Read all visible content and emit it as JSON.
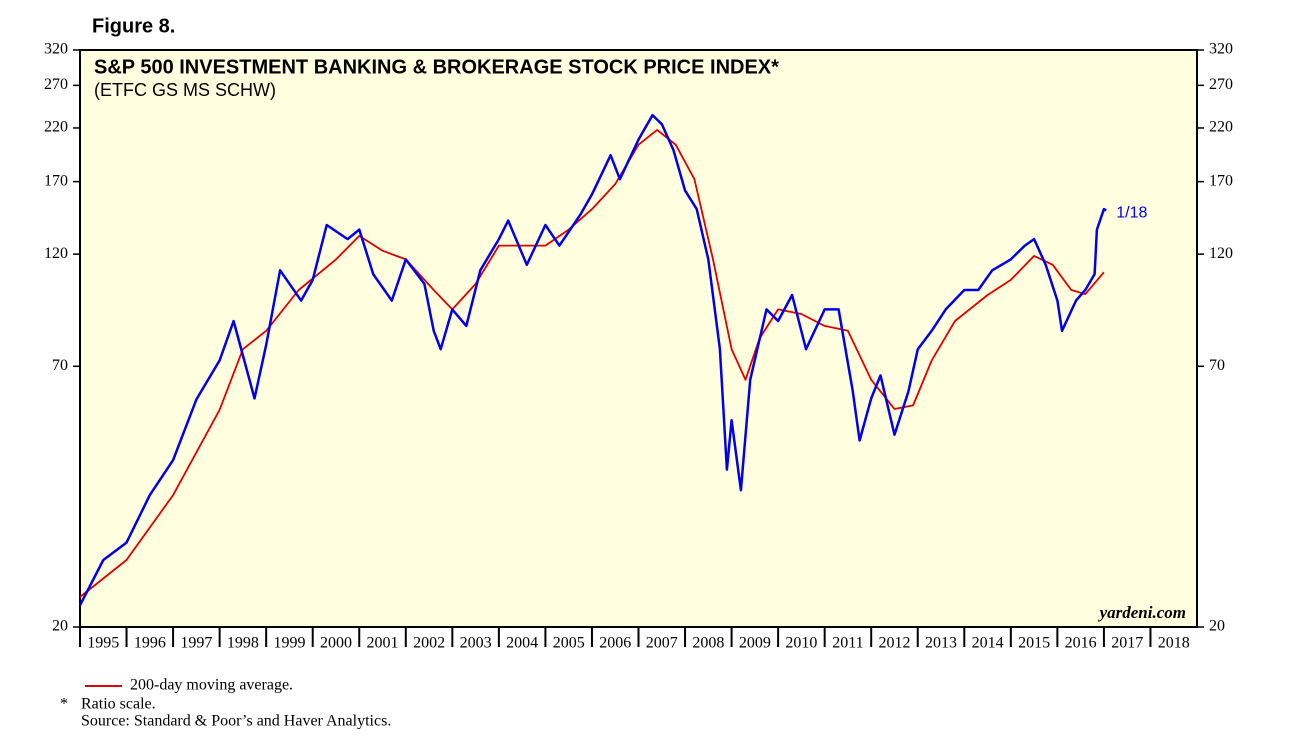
{
  "chart_data": {
    "type": "line",
    "figure_label": "Figure 8.",
    "title": "S&P 500 INVESTMENT BANKING & BROKERAGE STOCK PRICE INDEX*",
    "subtitle": "(ETFC GS MS SCHW)",
    "watermark": "yardeni.com",
    "end_label": "1/18",
    "footnote": "Ratio scale.",
    "footnote_mark": "*",
    "source": "Source: Standard & Poor’s and Haver Analytics.",
    "log_scale": true,
    "xlim": [
      1995,
      2019
    ],
    "xticks": [
      1995,
      1996,
      1997,
      1998,
      1999,
      2000,
      2001,
      2002,
      2003,
      2004,
      2005,
      2006,
      2007,
      2008,
      2009,
      2010,
      2011,
      2012,
      2013,
      2014,
      2015,
      2016,
      2017,
      2018
    ],
    "ylim": [
      20,
      320
    ],
    "yticks": [
      20,
      70,
      120,
      170,
      220,
      270,
      320
    ],
    "series": [
      {
        "color": "#0000ee",
        "x": [
          1995,
          1995.5,
          1996,
          1996.5,
          1997,
          1997.5,
          1998,
          1998.3,
          1998.75,
          1999,
          1999.3,
          1999.75,
          2000,
          2000.3,
          2000.75,
          2001,
          2001.3,
          2001.7,
          2002,
          2002.4,
          2002.6,
          2002.75,
          2003,
          2003.3,
          2003.6,
          2004,
          2004.2,
          2004.6,
          2005,
          2005.3,
          2005.75,
          2006,
          2006.4,
          2006.6,
          2007,
          2007.3,
          2007.5,
          2007.75,
          2008,
          2008.25,
          2008.5,
          2008.75,
          2008.9,
          2009,
          2009.2,
          2009.4,
          2009.75,
          2010,
          2010.3,
          2010.6,
          2011,
          2011.3,
          2011.6,
          2011.75,
          2012,
          2012.2,
          2012.5,
          2012.8,
          2013,
          2013.3,
          2013.6,
          2014,
          2014.3,
          2014.6,
          2015,
          2015.3,
          2015.5,
          2015.75,
          2016,
          2016.1,
          2016.4,
          2016.6,
          2016.8,
          2016.85,
          2017,
          2017.05
        ],
        "values": [
          22.2,
          27.6,
          30,
          37.7,
          44.6,
          59.7,
          72,
          87,
          60,
          77.6,
          111,
          96,
          106,
          138,
          129,
          135,
          109,
          96,
          117,
          104,
          83,
          76,
          92,
          85,
          111,
          129,
          141,
          114,
          138,
          125,
          145,
          160,
          193,
          172,
          208,
          234,
          224,
          198,
          163,
          149,
          117,
          76,
          42.6,
          54,
          38.6,
          65.6,
          92,
          87,
          98.6,
          76,
          92,
          92,
          62.4,
          49,
          60,
          67,
          50.4,
          62,
          76,
          83,
          92,
          101,
          101,
          111,
          117,
          125,
          129,
          114,
          96,
          83,
          96,
          101,
          109,
          135,
          149,
          148
        ]
      },
      {
        "name": "200-day moving average.",
        "color": "#e00000",
        "x": [
          1995,
          1996,
          1997,
          1998,
          1998.5,
          1999,
          1999.7,
          2000.5,
          2001,
          2001.5,
          2002,
          2002.6,
          2003,
          2003.5,
          2004,
          2004.5,
          2005,
          2005.5,
          2006,
          2006.5,
          2007,
          2007.4,
          2007.8,
          2008.2,
          2008.6,
          2009,
          2009.3,
          2009.6,
          2010,
          2010.5,
          2011,
          2011.5,
          2012,
          2012.5,
          2012.9,
          2013.3,
          2013.8,
          2014.5,
          2015,
          2015.5,
          2015.9,
          2016.3,
          2016.6,
          2017
        ],
        "values": [
          23.1,
          27.6,
          37.7,
          56.8,
          76,
          83,
          101,
          117,
          131,
          122,
          117,
          101,
          92,
          104,
          125,
          125,
          125,
          135,
          149,
          168,
          203,
          218,
          203,
          172,
          117,
          76,
          65.6,
          80,
          92,
          90,
          85,
          83,
          65.6,
          57,
          58,
          72,
          87,
          98.6,
          106,
          119,
          114,
          101,
          99,
          110
        ]
      }
    ]
  }
}
